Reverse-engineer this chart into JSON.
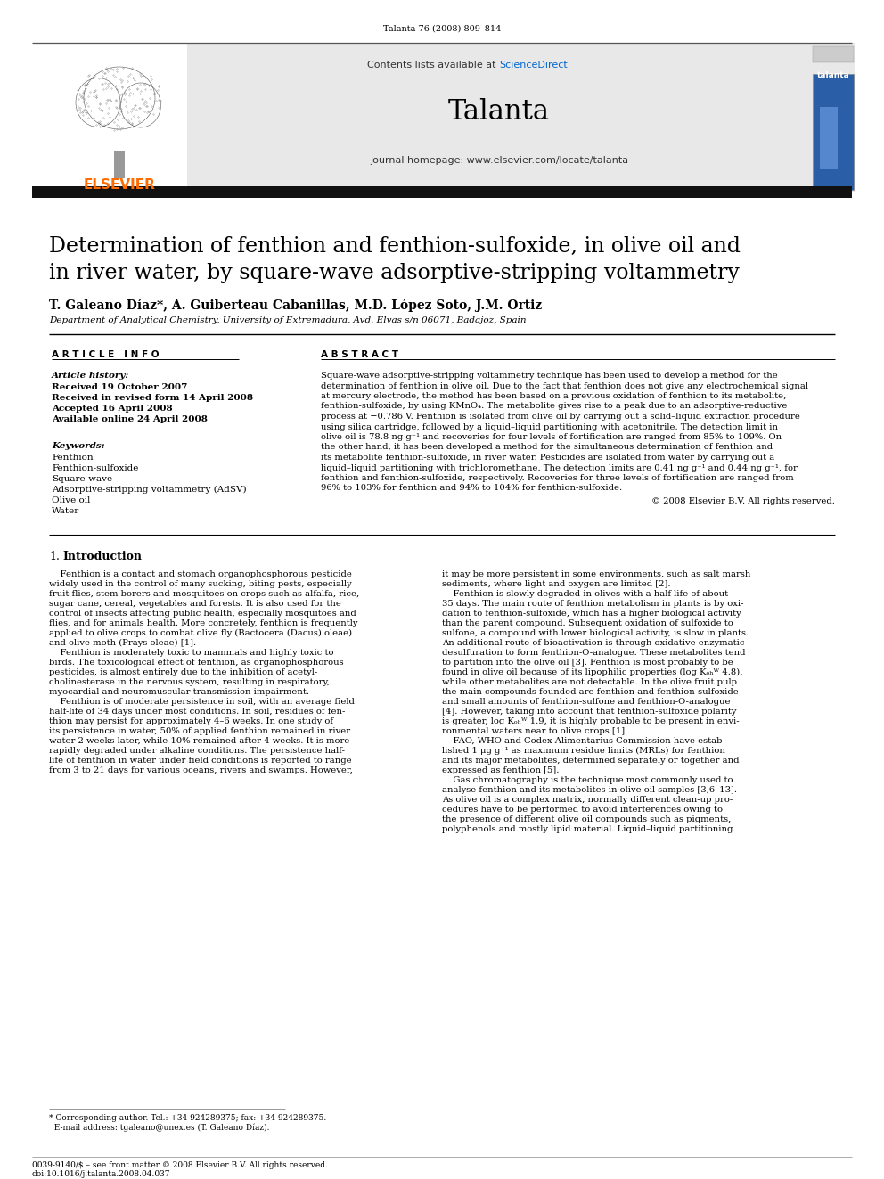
{
  "journal_ref": "Talanta 76 (2008) 809–814",
  "sciencedirect_color": "#0066cc",
  "journal_name": "Talanta",
  "journal_homepage": "journal homepage: www.elsevier.com/locate/talanta",
  "header_bg": "#e8e8e8",
  "dark_bar_color": "#111111",
  "article_title_line1": "Determination of fenthion and fenthion-sulfoxide, in olive oil and",
  "article_title_line2": "in river water, by square-wave adsorptive-stripping voltammetry",
  "authors": "T. Galeano Díaz*, A. Guiberteau Cabanillas, M.D. López Soto, J.M. Ortiz",
  "affiliation": "Department of Analytical Chemistry, University of Extremadura, Avd. Elvas s/n 06071, Badajoz, Spain",
  "article_info_label": "A R T I C L E   I N F O",
  "abstract_label": "A B S T R A C T",
  "article_history_label": "Article history:",
  "received1": "Received 19 October 2007",
  "received2": "Received in revised form 14 April 2008",
  "accepted": "Accepted 16 April 2008",
  "available": "Available online 24 April 2008",
  "keywords_label": "Keywords:",
  "keywords": [
    "Fenthion",
    "Fenthion-sulfoxide",
    "Square-wave",
    "Adsorptive-stripping voltammetry (AdSV)",
    "Olive oil",
    "Water"
  ],
  "copyright": "© 2008 Elsevier B.V. All rights reserved.",
  "elsevier_orange": "#FF6B00",
  "bg_color": "#ffffff",
  "text_color": "#000000",
  "abstract_lines": [
    "Square-wave adsorptive-stripping voltammetry technique has been used to develop a method for the",
    "determination of fenthion in olive oil. Due to the fact that fenthion does not give any electrochemical signal",
    "at mercury electrode, the method has been based on a previous oxidation of fenthion to its metabolite,",
    "fenthion-sulfoxide, by using KMnO₄. The metabolite gives rise to a peak due to an adsorptive-reductive",
    "process at −0.786 V. Fenthion is isolated from olive oil by carrying out a solid–liquid extraction procedure",
    "using silica cartridge, followed by a liquid–liquid partitioning with acetonitrile. The detection limit in",
    "olive oil is 78.8 ng g⁻¹ and recoveries for four levels of fortification are ranged from 85% to 109%. On",
    "the other hand, it has been developed a method for the simultaneous determination of fenthion and",
    "its metabolite fenthion-sulfoxide, in river water. Pesticides are isolated from water by carrying out a",
    "liquid–liquid partitioning with trichloromethane. The detection limits are 0.41 ng g⁻¹ and 0.44 ng g⁻¹, for",
    "fenthion and fenthion-sulfoxide, respectively. Recoveries for three levels of fortification are ranged from",
    "96% to 103% for fenthion and 94% to 104% for fenthion-sulfoxide."
  ],
  "col1_lines": [
    "    Fenthion is a contact and stomach organophosphorous pesticide",
    "widely used in the control of many sucking, biting pests, especially",
    "fruit flies, stem borers and mosquitoes on crops such as alfalfa, rice,",
    "sugar cane, cereal, vegetables and forests. It is also used for the",
    "control of insects affecting public health, especially mosquitoes and",
    "flies, and for animals health. More concretely, fenthion is frequently",
    "applied to olive crops to combat olive fly (Bactocera (Dacus) oleae)",
    "and olive moth (Prays oleae) [1].",
    "    Fenthion is moderately toxic to mammals and highly toxic to",
    "birds. The toxicological effect of fenthion, as organophosphorous",
    "pesticides, is almost entirely due to the inhibition of acetyl-",
    "cholinesterase in the nervous system, resulting in respiratory,",
    "myocardial and neuromuscular transmission impairment.",
    "    Fenthion is of moderate persistence in soil, with an average field",
    "half-life of 34 days under most conditions. In soil, residues of fen-",
    "thion may persist for approximately 4–6 weeks. In one study of",
    "its persistence in water, 50% of applied fenthion remained in river",
    "water 2 weeks later, while 10% remained after 4 weeks. It is more",
    "rapidly degraded under alkaline conditions. The persistence half-",
    "life of fenthion in water under field conditions is reported to range",
    "from 3 to 21 days for various oceans, rivers and swamps. However,"
  ],
  "col2_lines": [
    "it may be more persistent in some environments, such as salt marsh",
    "sediments, where light and oxygen are limited [2].",
    "    Fenthion is slowly degraded in olives with a half-life of about",
    "35 days. The main route of fenthion metabolism in plants is by oxi-",
    "dation to fenthion-sulfoxide, which has a higher biological activity",
    "than the parent compound. Subsequent oxidation of sulfoxide to",
    "sulfone, a compound with lower biological activity, is slow in plants.",
    "An additional route of bioactivation is through oxidative enzymatic",
    "desulfuration to form fenthion-O-analogue. These metabolites tend",
    "to partition into the olive oil [3]. Fenthion is most probably to be",
    "found in olive oil because of its lipophilic properties (log Kₒₕᵂ 4.8),",
    "while other metabolites are not detectable. In the olive fruit pulp",
    "the main compounds founded are fenthion and fenthion-sulfoxide",
    "and small amounts of fenthion-sulfone and fenthion-O-analogue",
    "[4]. However, taking into account that fenthion-sulfoxide polarity",
    "is greater, log Kₒₕᵂ 1.9, it is highly probable to be present in envi-",
    "ronmental waters near to olive crops [1].",
    "    FAO, WHO and Codex Alimentarius Commission have estab-",
    "lished 1 μg g⁻¹ as maximum residue limits (MRLs) for fenthion",
    "and its major metabolites, determined separately or together and",
    "expressed as fenthion [5].",
    "    Gas chromatography is the technique most commonly used to",
    "analyse fenthion and its metabolites in olive oil samples [3,6–13].",
    "As olive oil is a complex matrix, normally different clean-up pro-",
    "cedures have to be performed to avoid interferences owing to",
    "the presence of different olive oil compounds such as pigments,",
    "polyphenols and mostly lipid material. Liquid–liquid partitioning"
  ]
}
